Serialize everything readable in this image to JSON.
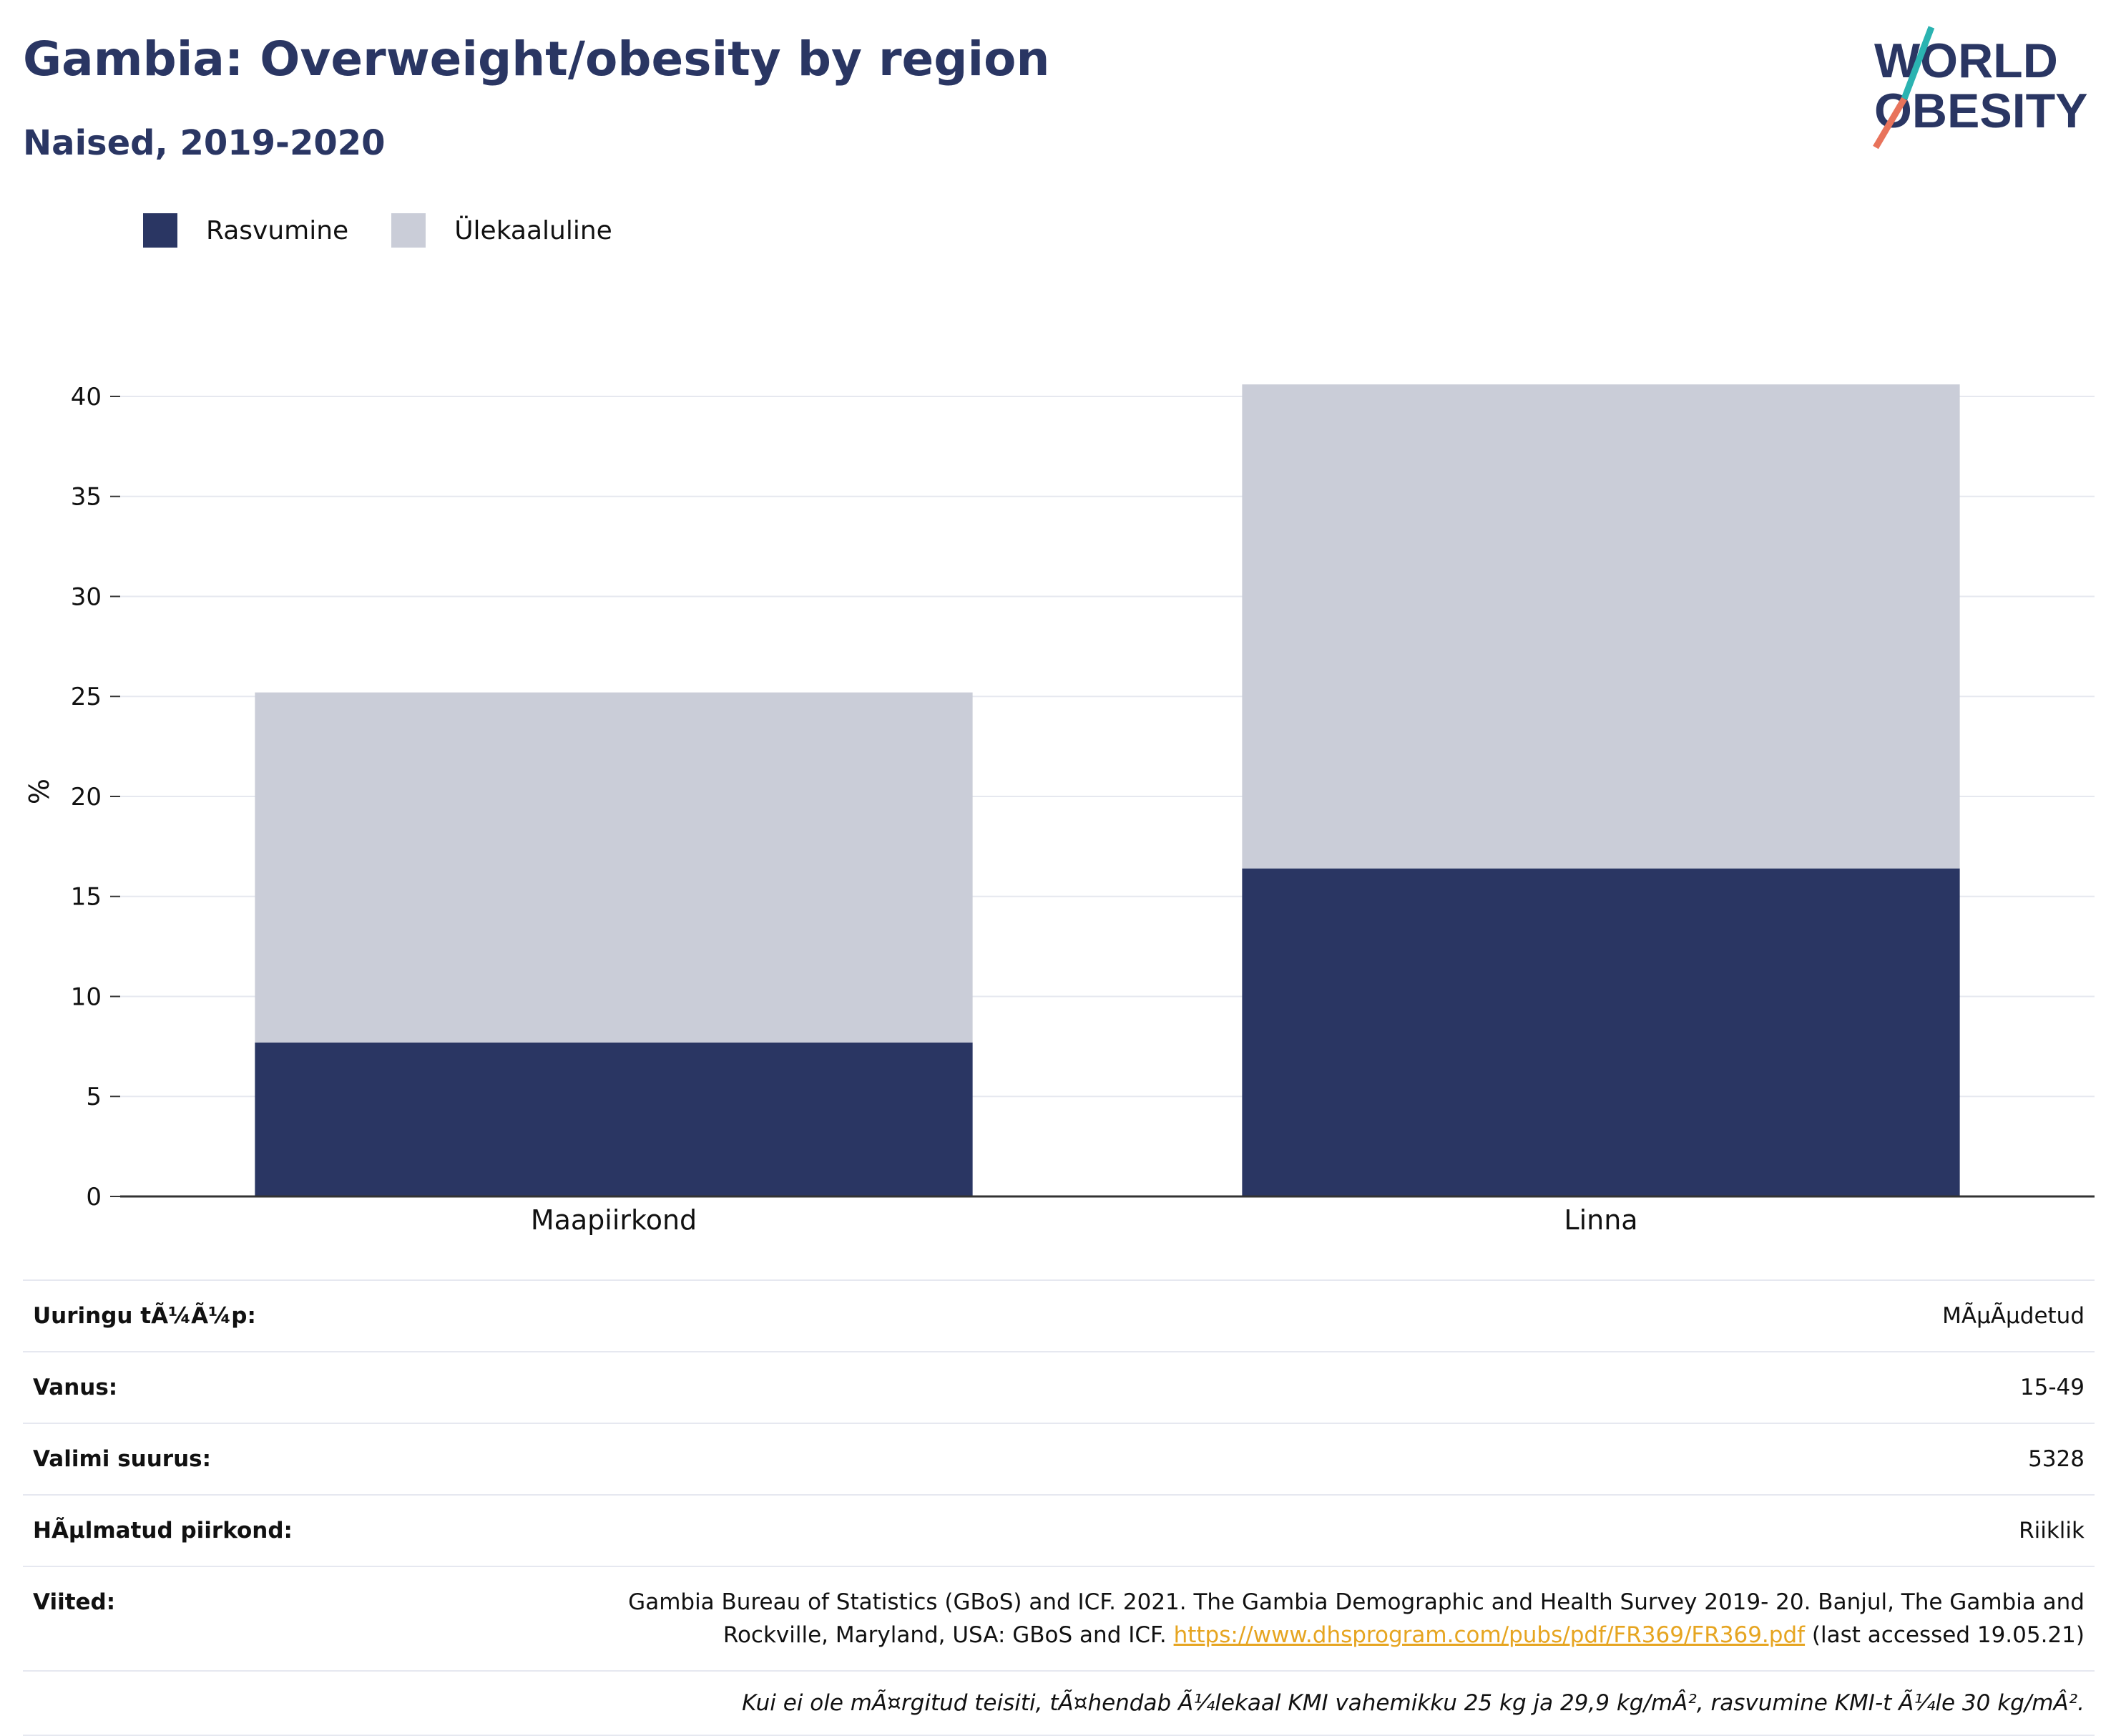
{
  "header": {
    "title": "Gambia: Overweight/obesity by region",
    "subtitle": "Naised, 2019-2020"
  },
  "logo": {
    "line1": "WORLD",
    "line2": "OBESITY"
  },
  "colors": {
    "obesity": "#2a3663",
    "overweight": "#cacdd8",
    "title": "#2a3663",
    "link": "#e6a521"
  },
  "chart_data": {
    "type": "bar",
    "stacked": true,
    "categories": [
      "Maapiirkond",
      "Linna"
    ],
    "series": [
      {
        "name": "Rasvumine",
        "values": [
          7.7,
          16.4
        ]
      },
      {
        "name": "Ülekaaluline",
        "values": [
          17.5,
          24.2
        ]
      }
    ],
    "yticks": [
      "0",
      "5",
      "10",
      "15",
      "20",
      "25",
      "30",
      "35",
      "40"
    ],
    "ylabel": "%",
    "ylim": [
      0,
      40.5
    ],
    "legend": "top-left",
    "grid": true
  },
  "info": {
    "survey_type_label": "Uuringu tÃ¼Ã¼p:",
    "survey_type_value": "MÃµÃµdetud",
    "age_label": "Vanus:",
    "age_value": "15-49",
    "sample_label": "Valimi suurus:",
    "sample_value": "5328",
    "area_label": "HÃµlmatud piirkond:",
    "area_value": "Riiklik",
    "refs_label": "Viited:",
    "refs_text": "Gambia Bureau of Statistics (GBoS) and ICF. 2021. The Gambia Demographic and Health Survey 2019- 20. Banjul, The Gambia and Rockville, Maryland, USA: GBoS and ICF.",
    "refs_link": "https://www.dhsprogram.com/pubs/pdf/FR369/FR369.pdf",
    "refs_accessed": "(last accessed 19.05.21)",
    "note": "Kui ei ole mÃ¤rgitud teisiti, tÃ¤hendab Ã¼lekaal KMI vahemikku 25 kg ja 29,9 kg/mÂ², rasvumine KMI-t Ã¼le 30 kg/mÂ²."
  }
}
